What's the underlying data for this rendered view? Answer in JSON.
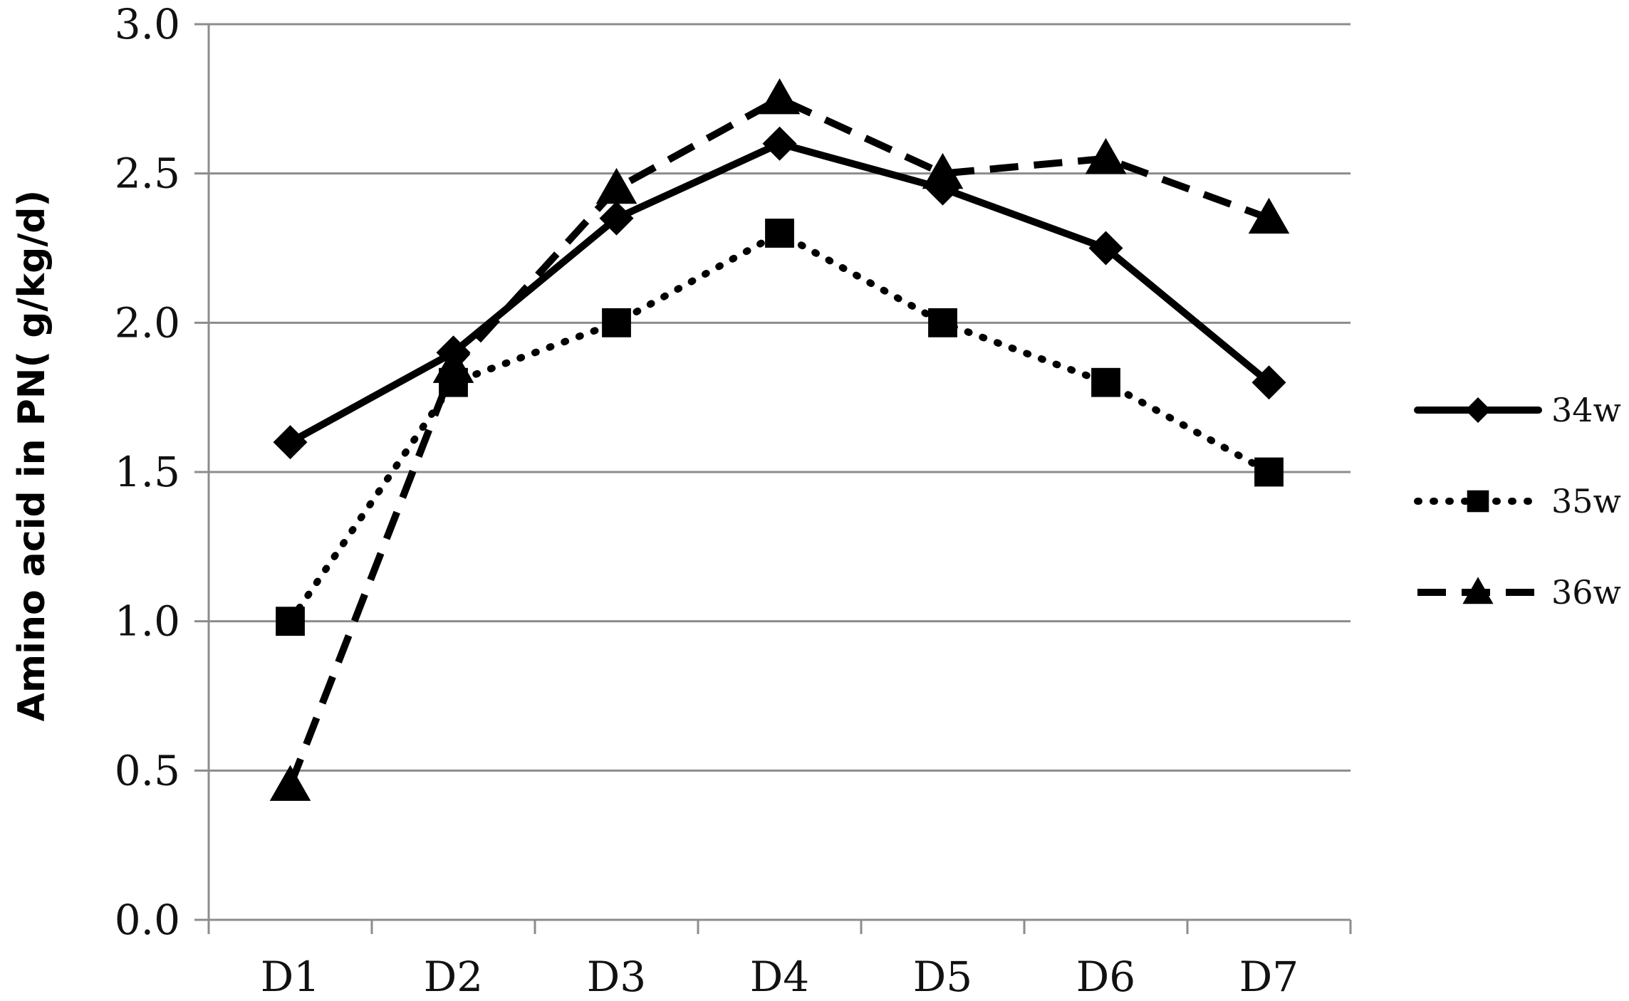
{
  "chart_data": {
    "type": "line",
    "title": "",
    "xlabel": "",
    "ylabel": "Amino acid in PN( g/kg/d)",
    "categories": [
      "D1",
      "D2",
      "D3",
      "D4",
      "D5",
      "D6",
      "D7"
    ],
    "ylim": [
      0,
      3
    ],
    "yticks": [
      "0.0",
      "0.5",
      "1.0",
      "1.5",
      "2.0",
      "2.5",
      "3.0"
    ],
    "grid": "horizontal",
    "legend": "right",
    "series": [
      {
        "name": "34w",
        "values": [
          1.6,
          1.9,
          2.35,
          2.6,
          2.45,
          2.25,
          1.8
        ],
        "line": "solid",
        "marker": "diamond",
        "color": "#000000"
      },
      {
        "name": "35w",
        "values": [
          1.0,
          1.8,
          2.0,
          2.3,
          2.0,
          1.8,
          1.5
        ],
        "line": "dotted",
        "marker": "square",
        "color": "#000000"
      },
      {
        "name": "36w",
        "values": [
          0.45,
          1.85,
          2.45,
          2.75,
          2.5,
          2.55,
          2.35
        ],
        "line": "dashed",
        "marker": "triangle",
        "color": "#000000"
      }
    ]
  }
}
